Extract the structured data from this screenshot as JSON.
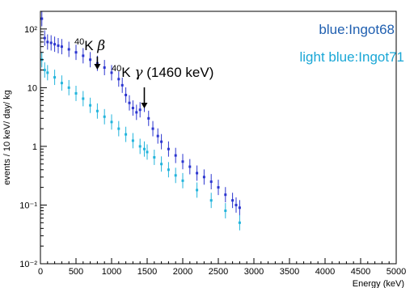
{
  "chart_data": {
    "type": "scatter",
    "title": "",
    "xlabel": "Energy (keV)",
    "ylabel": "events / 10 keV/ day/ kg",
    "xlim": [
      0,
      5000
    ],
    "ylim": [
      0.01,
      200
    ],
    "y_scale": "log",
    "grid": false,
    "x_ticks": [
      "0",
      "500",
      "1000",
      "1500",
      "2000",
      "2500",
      "3000",
      "3500",
      "4000",
      "4500",
      "5000"
    ],
    "y_ticks": [
      "10⁻²",
      "10⁻¹",
      "1",
      "10",
      "10²"
    ],
    "legend": [
      {
        "text": "blue:Ingot68",
        "color": "#1f5fb0"
      },
      {
        "text": "light blue:Ingot71",
        "color": "#1aa7d6"
      }
    ],
    "annotations": [
      {
        "label": "K β",
        "superscript": "40",
        "x": 800
      },
      {
        "label": "K γ (1460 keV)",
        "superscript": "40",
        "x": 1460
      }
    ],
    "series": [
      {
        "color": "#2b35d0",
        "x": [
          20,
          60,
          100,
          150,
          200,
          250,
          300,
          400,
          500,
          600,
          700,
          800,
          900,
          1000,
          1100,
          1150,
          1200,
          1250,
          1300,
          1350,
          1400,
          1460,
          1520,
          1580,
          1650,
          1700,
          1800,
          1900,
          2000,
          2100,
          2200,
          2300,
          2400,
          2500,
          2600,
          2700,
          2750,
          2800
        ],
        "y": [
          150,
          70,
          60,
          58,
          55,
          52,
          50,
          45,
          40,
          35,
          30,
          26,
          22,
          18,
          14,
          11,
          7.5,
          5.5,
          4.5,
          3.8,
          4.2,
          5.2,
          3.0,
          2.0,
          1.5,
          1.2,
          0.9,
          0.7,
          0.55,
          0.45,
          0.35,
          0.3,
          0.25,
          0.2,
          0.15,
          0.12,
          0.1,
          0.09
        ]
      },
      {
        "color": "#22b4dc",
        "x": [
          20,
          60,
          100,
          200,
          300,
          400,
          500,
          600,
          700,
          800,
          900,
          1000,
          1100,
          1200,
          1300,
          1400,
          1460,
          1500,
          1600,
          1700,
          1800,
          1900,
          2000,
          2200,
          2400,
          2600,
          2800
        ],
        "y": [
          30,
          20,
          18,
          15,
          12,
          10,
          8,
          6.5,
          5,
          4,
          3.2,
          2.6,
          2.0,
          1.6,
          1.25,
          1.0,
          0.9,
          0.8,
          0.65,
          0.5,
          0.4,
          0.32,
          0.26,
          0.18,
          0.12,
          0.08,
          0.05
        ]
      }
    ]
  }
}
